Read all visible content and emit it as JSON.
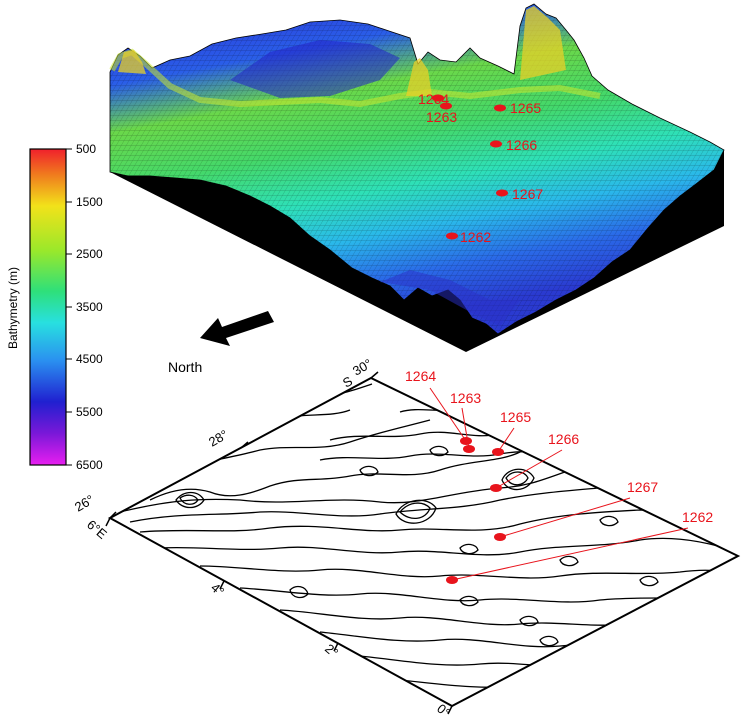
{
  "colorbar": {
    "title": "Bathymetry (m)",
    "ticks": [
      "500",
      "1500",
      "2500",
      "3500",
      "4500",
      "5500",
      "6500"
    ],
    "colors": [
      "#f0202c",
      "#f07a1e",
      "#f2e21a",
      "#9be82a",
      "#2ee07a",
      "#28e0e0",
      "#2a90f0",
      "#2020d0",
      "#7a18d8",
      "#e81ef0"
    ]
  },
  "north": {
    "label": "North"
  },
  "map_axes": {
    "lat_labels": [
      "30°",
      "28°",
      "26°"
    ],
    "lat_hemisphere": "S",
    "lon_labels": [
      "6°E",
      "4°",
      "2°",
      "0°"
    ]
  },
  "sites_3d": [
    {
      "id": "1264",
      "label": "1264"
    },
    {
      "id": "1263",
      "label": "1263"
    },
    {
      "id": "1265",
      "label": "1265"
    },
    {
      "id": "1266",
      "label": "1266"
    },
    {
      "id": "1267",
      "label": "1267"
    },
    {
      "id": "1262",
      "label": "1262"
    }
  ],
  "sites_map": [
    {
      "id": "1264",
      "label": "1264"
    },
    {
      "id": "1263",
      "label": "1263"
    },
    {
      "id": "1265",
      "label": "1265"
    },
    {
      "id": "1266",
      "label": "1266"
    },
    {
      "id": "1267",
      "label": "1267"
    },
    {
      "id": "1262",
      "label": "1262"
    }
  ],
  "styles": {
    "site_color": "#e8141c",
    "block_side": "#000000"
  }
}
